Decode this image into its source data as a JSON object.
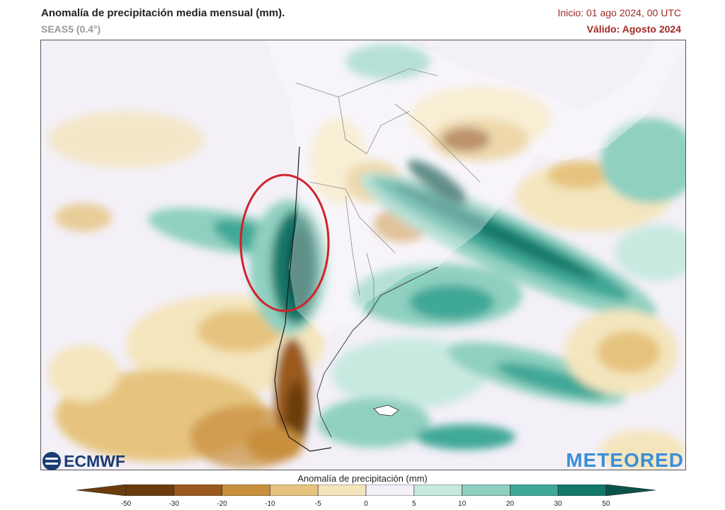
{
  "header": {
    "title": "Anomalía de precipitación media mensual (mm).",
    "model": "SEAS5 (0.4°)",
    "init": "Inicio: 01 ago 2024, 00 UTC",
    "valid": "Válido: Agosto 2024"
  },
  "logos": {
    "left": "ECMWF",
    "right": "METEORED"
  },
  "colorbar": {
    "title": "Anomalía de precipitación (mm)",
    "ticks": [
      "-50",
      "-30",
      "-20",
      "-10",
      "-5",
      "0",
      "5",
      "10",
      "20",
      "30",
      "50"
    ],
    "colors": [
      "#6b3d0e",
      "#9a5a1e",
      "#c88f3d",
      "#e6c47f",
      "#f4e5bd",
      "#f4f0f8",
      "#c8e9e0",
      "#8fd0c0",
      "#3fa897",
      "#13786a",
      "#0a5348"
    ]
  },
  "annotation": {
    "color": "#d0222a"
  }
}
